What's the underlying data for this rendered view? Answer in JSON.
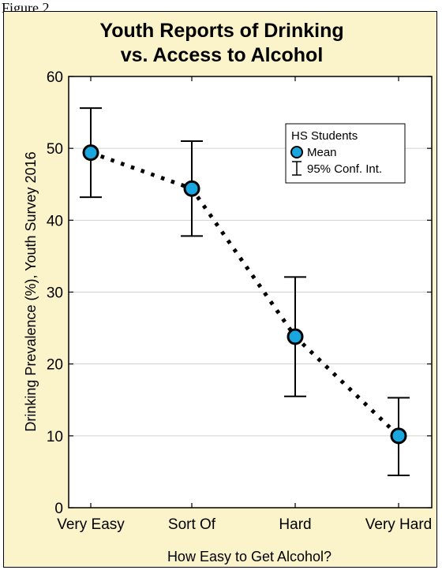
{
  "figure_label": "Figure 2",
  "chart_data": {
    "type": "scatter",
    "title": [
      "Youth Reports of Drinking",
      "vs. Access to Alcohol"
    ],
    "xlabel": "How Easy to Get Alcohol?",
    "ylabel": "Drinking Prevalence (%), Youth Survey 2016",
    "categories": [
      "Very Easy",
      "Sort Of",
      "Hard",
      "Very Hard"
    ],
    "series": [
      {
        "name": "Mean",
        "values": [
          49.4,
          44.4,
          23.8,
          10.0
        ],
        "ci_low": [
          43.2,
          37.8,
          15.5,
          4.5
        ],
        "ci_high": [
          55.6,
          51.0,
          32.1,
          15.3
        ]
      }
    ],
    "ylim": [
      0,
      60
    ],
    "yticks": [
      0,
      10,
      20,
      30,
      40,
      50,
      60
    ],
    "grid": "horizontal",
    "legend": {
      "position": "top-right",
      "title": "HS Students",
      "entries": [
        "Mean",
        "95% Conf. Int."
      ]
    },
    "colors": {
      "marker": "#1aa6de",
      "background": "#fbf3c9",
      "plot_bg": "#ffffff",
      "grid": "#d0d0d0"
    }
  }
}
